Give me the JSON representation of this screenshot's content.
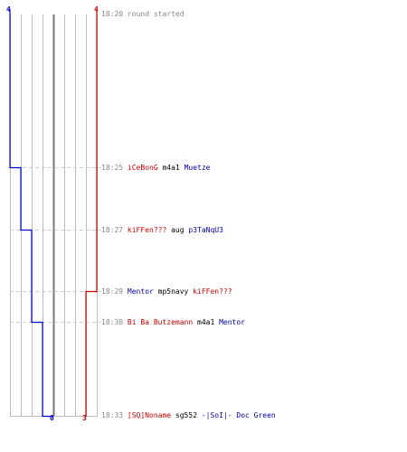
{
  "colors": {
    "blue_team": "#0000cc",
    "red_team": "#cc0000",
    "grid": "#bbbbbb",
    "center": "#777777",
    "dash": "#cccccc"
  },
  "scores": {
    "blue_start": "4",
    "red_start": "4",
    "blue_end": "0",
    "red_end": "3"
  },
  "events": [
    {
      "time": "18:20",
      "msg": "round started"
    },
    {
      "time": "18:25",
      "killer": "iCeBonG",
      "weapon": "m4a1",
      "victim": "Muetze"
    },
    {
      "time": "18:27",
      "killer": "kiFFen???",
      "weapon": "aug",
      "victim": "p3TaNqU3"
    },
    {
      "time": "18:29",
      "killer": "Mentor",
      "weapon": "mp5navy",
      "victim": "kiFFen???"
    },
    {
      "time": "18:30",
      "killer": "Bi Ba Butzemann",
      "weapon": "m4a1",
      "victim": "Mentor"
    },
    {
      "time": "18:33",
      "killer": "[SQ]Noname",
      "weapon": "sg552",
      "victim": "-|SoI|- Doc Green"
    }
  ]
}
